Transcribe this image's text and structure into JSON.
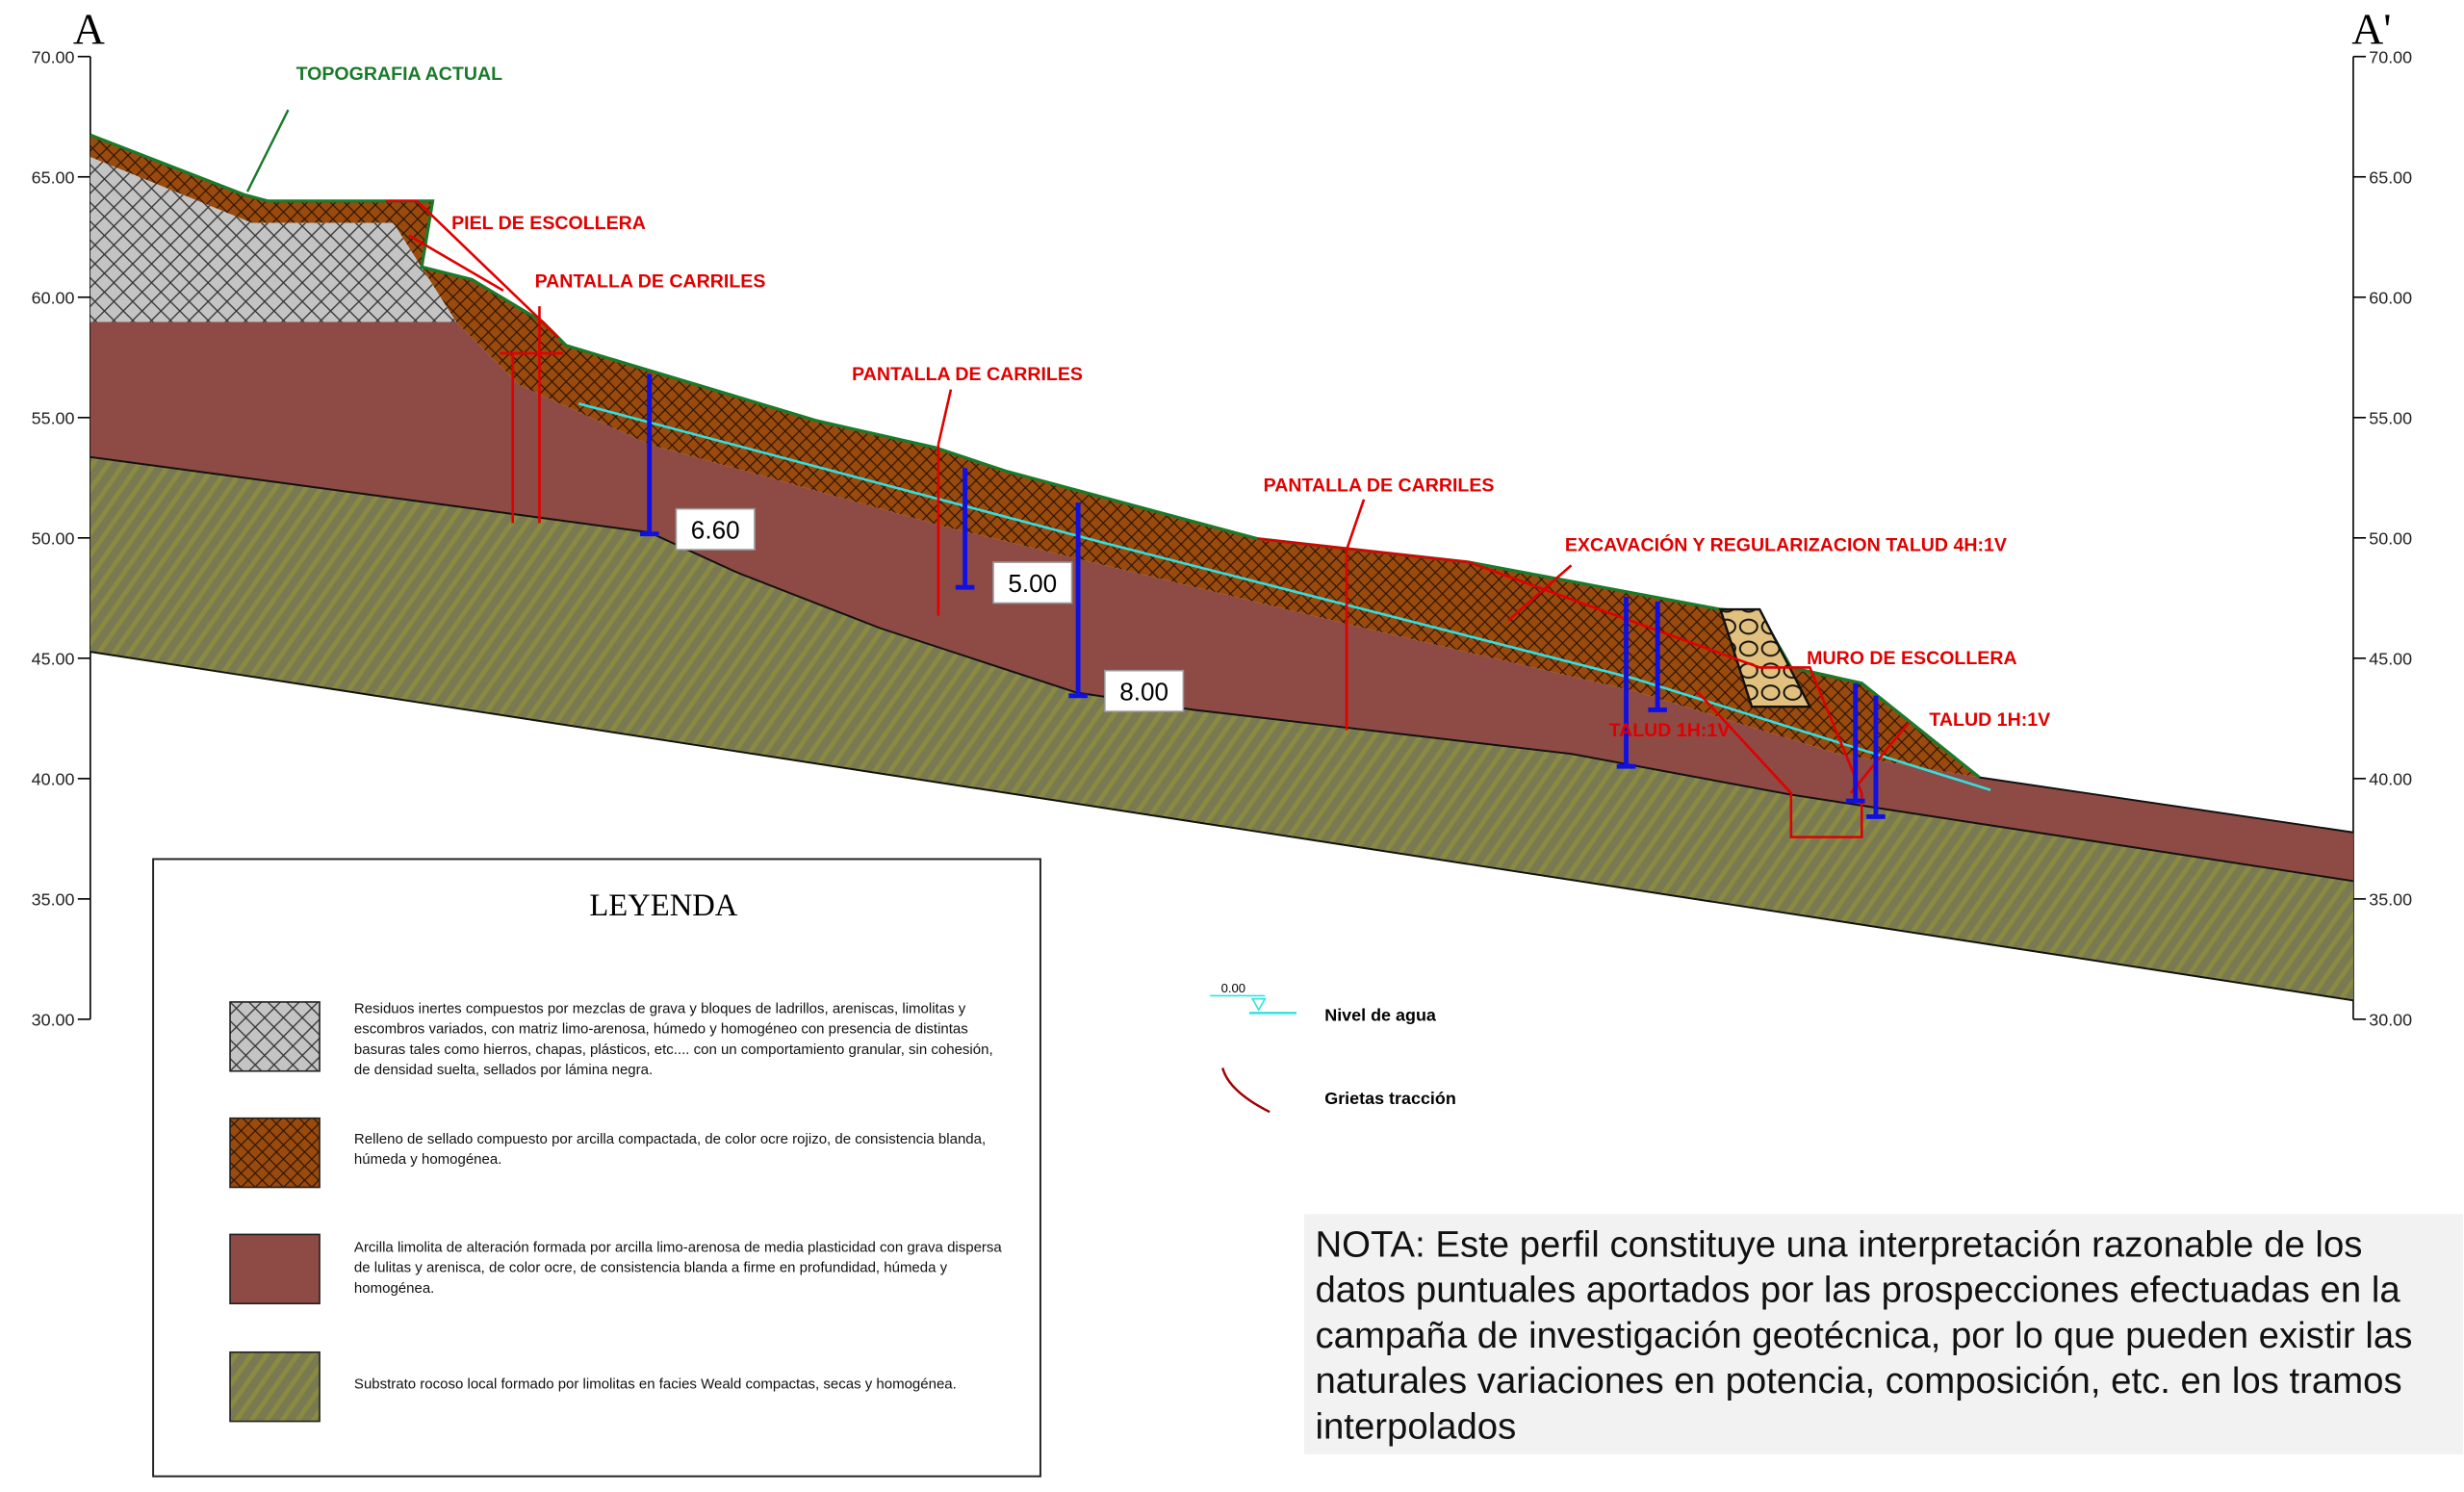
{
  "section": {
    "start_label": "A",
    "end_label": "A'"
  },
  "axis": {
    "ticks": [
      "70.00",
      "65.00",
      "60.00",
      "55.00",
      "50.00",
      "45.00",
      "40.00",
      "35.00",
      "30.00"
    ],
    "range": [
      30,
      70
    ]
  },
  "labels": {
    "topografia": "TOPOGRAFIA ACTUAL",
    "piel": "PIEL DE ESCOLLERA",
    "pantalla1": "PANTALLA DE CARRILES",
    "pantalla2": "PANTALLA DE CARRILES",
    "pantalla3": "PANTALLA DE CARRILES",
    "excavacion": "EXCAVACIÓN Y REGULARIZACION TALUD 4H:1V",
    "muro": "MURO DE ESCOLLERA",
    "talud1": "TALUD 1H:1V",
    "talud2": "TALUD 1H:1V"
  },
  "depths": [
    "6.60",
    "5.00",
    "8.00"
  ],
  "legend": {
    "title": "LEYENDA",
    "items": [
      {
        "text": [
          "Residuos inertes compuestos por mezclas de grava y bloques de ladrillos, areniscas, limolitas y",
          "escombros variados, con matriz limo-arenosa, húmedo y homogéneo con presencia de distintas",
          "basuras tales como hierros, chapas, plásticos, etc.... con un comportamiento granular, sin cohesión,",
          "de densidad suelta, sellados por lámina negra."
        ]
      },
      {
        "text": [
          "Relleno de sellado compuesto por arcilla compactada, de color ocre rojizo, de consistencia blanda,",
          "húmeda y homogénea."
        ]
      },
      {
        "text": [
          "Arcilla limolita de alteración formada por arcilla limo-arenosa de media plasticidad con grava dispersa",
          "de lulitas y arenisca, de color ocre, de consistencia blanda a firme en profundidad, húmeda y",
          "homogénea."
        ]
      },
      {
        "text": [
          "Substrato rocoso local formado por limolitas en facies Weald compactas, secas y homogénea."
        ]
      }
    ],
    "water_value": "0.00",
    "water": "Nivel de agua",
    "cracks": "Grietas tracción"
  },
  "nota": [
    "NOTA: Este perfil constituye una interpretación razonable de los",
    "datos puntuales aportados por las prospecciones efectuadas en la",
    "campaña de investigación geotécnica, por lo que pueden existir las",
    "naturales variaciones en potencia, composición, etc. en los tramos",
    "interpolados"
  ],
  "colors": {
    "residuos": "#c4c4c4",
    "relleno": "#9a4a0c",
    "arcilla": "#8e4a44",
    "substrato": "#7a7a52",
    "topografia": "#1a7a2a",
    "annotation": "#e00000",
    "borehole": "#1010e0",
    "water": "#33e0e0"
  }
}
